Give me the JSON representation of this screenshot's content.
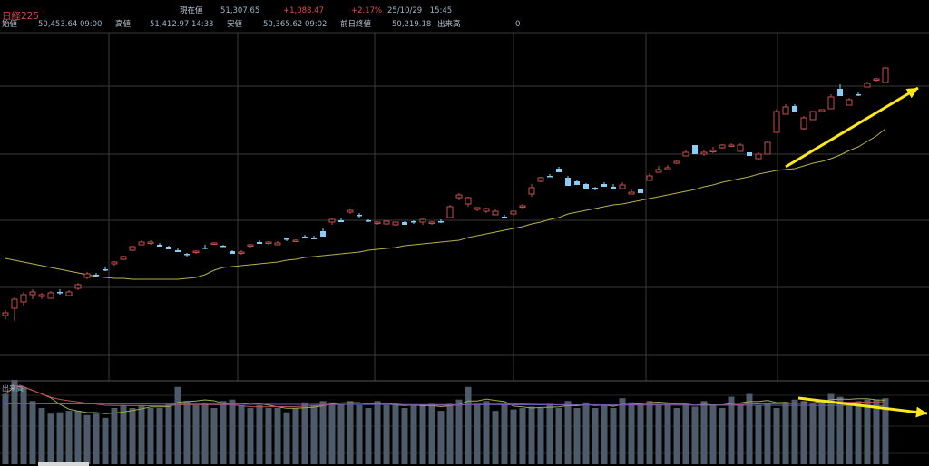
{
  "header": {
    "title": "日経225",
    "current_label": "現在値",
    "current_value": "51,307.65",
    "change": "+1,088.47",
    "change_pct": "+2.17%",
    "datetime": "25/10/29　15:45",
    "open_label": "始値",
    "open_value": "50,453.64 09:00",
    "high_label": "高値",
    "high_value": "51,412.97 14:33",
    "low_label": "安値",
    "low_value": "50,365.62 09:02",
    "prev_close_label": "前日終値",
    "prev_close_value": "50,219.18",
    "volume_label": "出来高",
    "volume_value": "0"
  },
  "volume_panel": {
    "title": "出来高"
  },
  "colors": {
    "up": "#c0504d",
    "down": "#87cefa",
    "ma": "#b9b04a",
    "volume_bar": "#4d5b6b",
    "grid": "#3a3a3a",
    "arrow": "#ffe81a"
  },
  "chart_data": {
    "type": "candlestick",
    "series": [
      {
        "name": "candles",
        "ohlc": [
          [
            348,
            345,
            352,
            342
          ],
          [
            340,
            330,
            354,
            328
          ],
          [
            333,
            325,
            337,
            322
          ],
          [
            325,
            322,
            330,
            319
          ],
          [
            327,
            325,
            330,
            323
          ],
          [
            329,
            323,
            329,
            321
          ],
          [
            322,
            323,
            325,
            319
          ],
          [
            326,
            322,
            327,
            320
          ],
          [
            318,
            314,
            320,
            312
          ],
          [
            306,
            302,
            308,
            300
          ],
          [
            303,
            304,
            306,
            301
          ],
          [
            297,
            297,
            299,
            294
          ],
          [
            291,
            289,
            293,
            288
          ],
          [
            286,
            283,
            287,
            282
          ],
          [
            276,
            272,
            277,
            271
          ],
          [
            270,
            267,
            270,
            265
          ],
          [
            268,
            267,
            270,
            265
          ],
          [
            270,
            272,
            272,
            268
          ],
          [
            272,
            275,
            275,
            271
          ],
          [
            276,
            278,
            278,
            273
          ],
          [
            280,
            281,
            283,
            279
          ],
          [
            278,
            277,
            280,
            276
          ],
          [
            273,
            273,
            275,
            270
          ],
          [
            269,
            268,
            270,
            267
          ],
          [
            271,
            272,
            272,
            270
          ],
          [
            277,
            280,
            280,
            276
          ],
          [
            279,
            278,
            281,
            276
          ],
          [
            271,
            270,
            273,
            269
          ],
          [
            267,
            269,
            268,
            265
          ],
          [
            268,
            267,
            270,
            266
          ],
          [
            270,
            268,
            270,
            266
          ],
          [
            263,
            264,
            266,
            262
          ],
          [
            266,
            265,
            267,
            264
          ],
          [
            261,
            261,
            263,
            259
          ],
          [
            262,
            264,
            264,
            260
          ],
          [
            255,
            261,
            255,
            252
          ],
          [
            245,
            242,
            248,
            241
          ],
          [
            243,
            245,
            245,
            241
          ],
          [
            234,
            232,
            236,
            230
          ],
          [
            237,
            238,
            240,
            235
          ],
          [
            243,
            243,
            245,
            242
          ],
          [
            246,
            245,
            248,
            244
          ],
          [
            247,
            244,
            248,
            244
          ],
          [
            248,
            245,
            249,
            245
          ],
          [
            245,
            248,
            248,
            244
          ],
          [
            244,
            245,
            247,
            243
          ],
          [
            245,
            242,
            248,
            241
          ],
          [
            246,
            245,
            248,
            244
          ],
          [
            244,
            244,
            246,
            242
          ],
          [
            240,
            228,
            240,
            226
          ],
          [
            218,
            215,
            221,
            213
          ],
          [
            225,
            218,
            228,
            217
          ],
          [
            231,
            229,
            233,
            229
          ],
          [
            233,
            230,
            235,
            229
          ],
          [
            237,
            233,
            237,
            231
          ],
          [
            239,
            241,
            241,
            237
          ],
          [
            236,
            233,
            238,
            233
          ],
          [
            228,
            227,
            230,
            225
          ],
          [
            214,
            207,
            217,
            203
          ],
          [
            200,
            196,
            201,
            195
          ],
          [
            194,
            194,
            195,
            192
          ],
          [
            186,
            190,
            186,
            184
          ],
          [
            196,
            205,
            196,
            194
          ],
          [
            200,
            204,
            203,
            199
          ],
          [
            203,
            208,
            205,
            202
          ],
          [
            207,
            209,
            210,
            206
          ],
          [
            203,
            206,
            205,
            201
          ],
          [
            206,
            208,
            208,
            203
          ],
          [
            208,
            204,
            208,
            201
          ],
          [
            214,
            212,
            214,
            209
          ],
          [
            209,
            213,
            210,
            208
          ],
          [
            199,
            194,
            199,
            191
          ],
          [
            190,
            187,
            190,
            183
          ],
          [
            187,
            185,
            187,
            182
          ],
          [
            180,
            178,
            181,
            176
          ],
          [
            172,
            168,
            172,
            165
          ],
          [
            160,
            170,
            160,
            169
          ],
          [
            170,
            168,
            172,
            165
          ],
          [
            167,
            166,
            169,
            162
          ],
          [
            163,
            160,
            164,
            159
          ],
          [
            161,
            160,
            162,
            158
          ],
          [
            167,
            160,
            167,
            158
          ],
          [
            168,
            172,
            168,
            170
          ],
          [
            175,
            170,
            176,
            168
          ],
          [
            170,
            157,
            170,
            156
          ],
          [
            146,
            123,
            146,
            120
          ],
          [
            126,
            118,
            126,
            115
          ],
          [
            117,
            123,
            118,
            115
          ],
          [
            142,
            130,
            143,
            128
          ],
          [
            132,
            123,
            132,
            123
          ],
          [
            123,
            121,
            124,
            121
          ],
          [
            120,
            107,
            120,
            104
          ],
          [
            98,
            106,
            97,
            93
          ],
          [
            116,
            110,
            116,
            108
          ],
          [
            104,
            105,
            106,
            102
          ],
          [
            96,
            92,
            96,
            90
          ],
          [
            88,
            87,
            90,
            86
          ],
          [
            91,
            75,
            91,
            74
          ]
        ]
      },
      {
        "name": "ma",
        "values": [
          285,
          287,
          289,
          291,
          293,
          295,
          297,
          299,
          301,
          303,
          305,
          306,
          307,
          307,
          308,
          308,
          308,
          308,
          308,
          308,
          307,
          306,
          303,
          298,
          295,
          294,
          293,
          292,
          291,
          290,
          289,
          287,
          286,
          284,
          283,
          282,
          281,
          280,
          279,
          278,
          276,
          275,
          274,
          273,
          271,
          270,
          269,
          268,
          267,
          266,
          265,
          262,
          260,
          258,
          256,
          254,
          252,
          250,
          247,
          245,
          242,
          240,
          236,
          234,
          232,
          230,
          228,
          226,
          225,
          223,
          221,
          219,
          217,
          215,
          213,
          211,
          209,
          206,
          204,
          201,
          199,
          197,
          195,
          192,
          190,
          188,
          187,
          186,
          183,
          180,
          178,
          175,
          171,
          166,
          162,
          156,
          150,
          142
        ]
      },
      {
        "name": "volume",
        "values": [
          50,
          60,
          55,
          45,
          40,
          36,
          37,
          38,
          38,
          35,
          36,
          33,
          40,
          42,
          40,
          42,
          40,
          40,
          43,
          55,
          45,
          42,
          44,
          40,
          45,
          46,
          42,
          40,
          42,
          40,
          40,
          37,
          40,
          44,
          42,
          45,
          44,
          43,
          45,
          42,
          40,
          45,
          42,
          42,
          40,
          42,
          42,
          43,
          38,
          43,
          46,
          55,
          43,
          45,
          38,
          42,
          39,
          40,
          41,
          40,
          43,
          40,
          45,
          40,
          44,
          40,
          42,
          40,
          47,
          44,
          43,
          45,
          42,
          44,
          40,
          43,
          41,
          45,
          42,
          40,
          48,
          43,
          50,
          42,
          44,
          40,
          44,
          46,
          45,
          43,
          46,
          50,
          48,
          44,
          45,
          46,
          46,
          47
        ]
      }
    ]
  }
}
